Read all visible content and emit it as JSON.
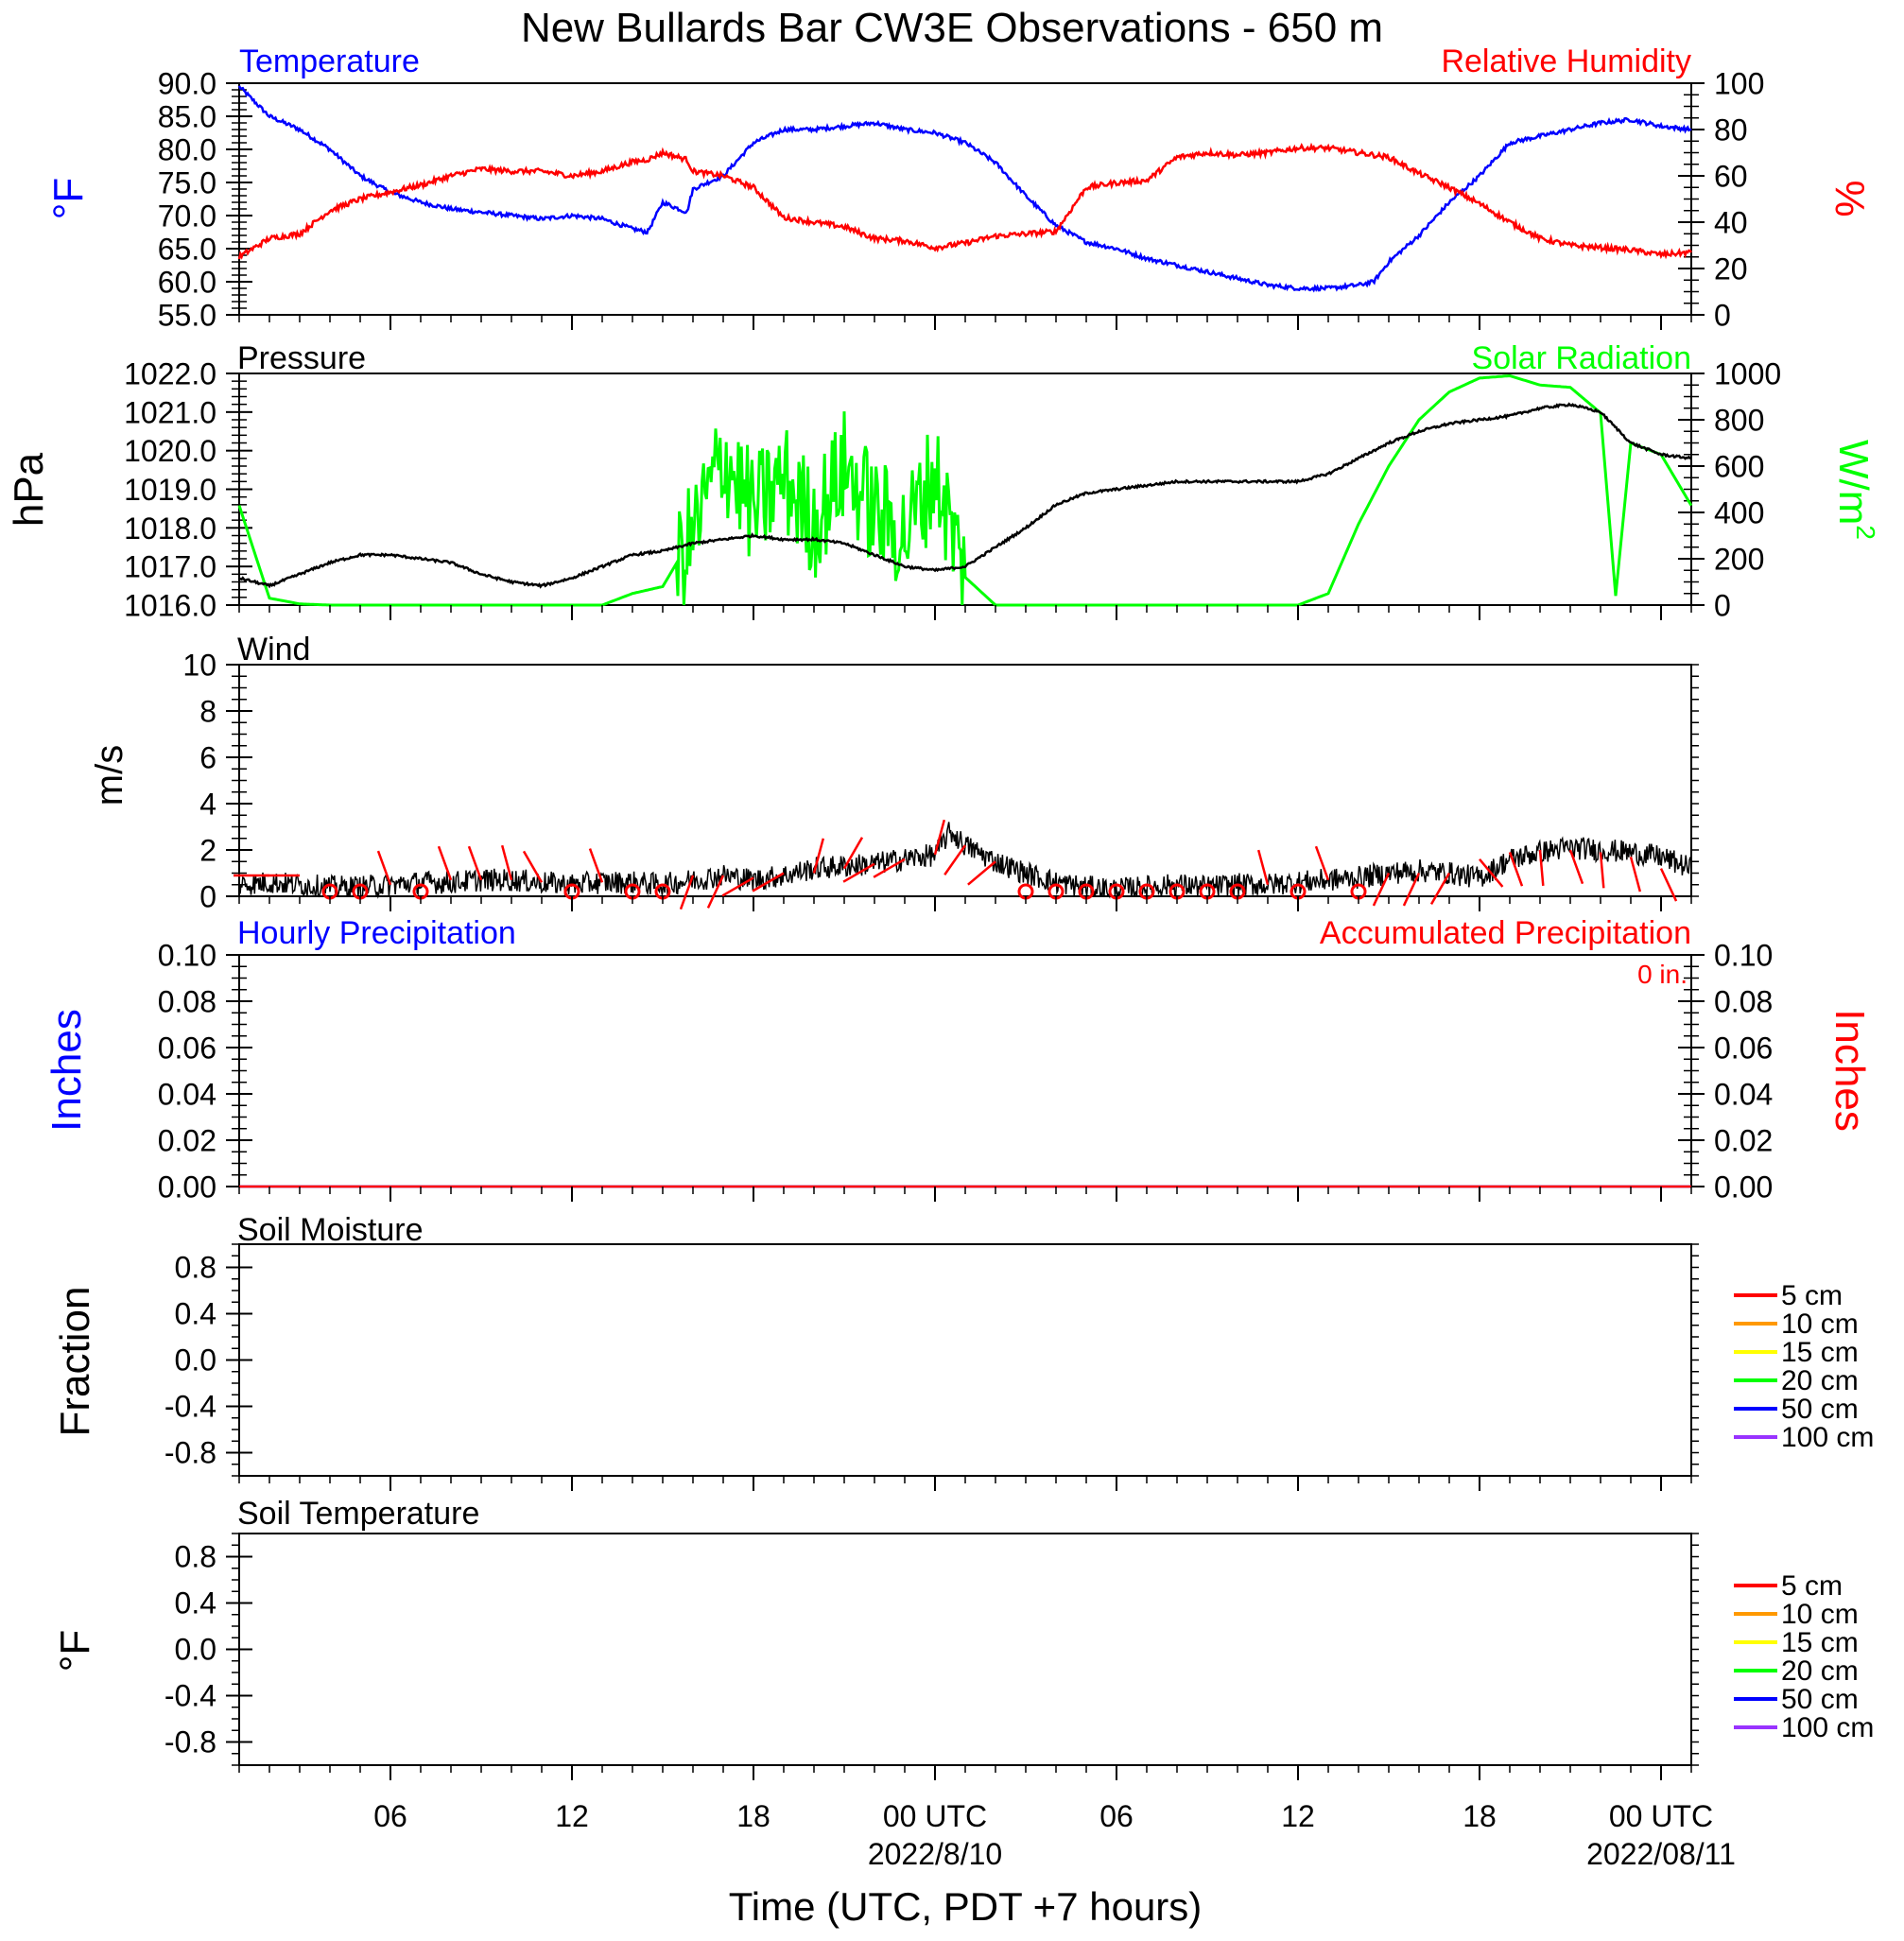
{
  "title": "New Bullards Bar CW3E Observations - 650 m",
  "xaxis": {
    "title": "Time (UTC, PDT +7 hours)",
    "ticks": [
      {
        "hour": 6,
        "label": "06",
        "sub": ""
      },
      {
        "hour": 12,
        "label": "12",
        "sub": ""
      },
      {
        "hour": 18,
        "label": "18",
        "sub": ""
      },
      {
        "hour": 24,
        "label": "00 UTC",
        "sub": "2022/8/10"
      },
      {
        "hour": 30,
        "label": "06",
        "sub": ""
      },
      {
        "hour": 36,
        "label": "12",
        "sub": ""
      },
      {
        "hour": 42,
        "label": "18",
        "sub": ""
      },
      {
        "hour": 48,
        "label": "00 UTC",
        "sub": "2022/08/11"
      }
    ],
    "range_hours": [
      1,
      49
    ]
  },
  "colors": {
    "temperature": "#0000ff",
    "humidity": "#ff0000",
    "pressure": "#000000",
    "solar": "#00ff00",
    "wind_speed": "#000000",
    "wind_barb": "#ff0000",
    "hourly_precip": "#0000ff",
    "accum_precip": "#ff0000"
  },
  "panels": {
    "temp_rh": {
      "left_title": "Temperature",
      "right_title": "Relative Humidity",
      "left_unit": "°F",
      "right_unit": "%",
      "left_ticks": [
        "90.0",
        "85.0",
        "80.0",
        "75.0",
        "70.0",
        "65.0",
        "60.0",
        "55.0"
      ],
      "right_ticks": [
        "100",
        "80",
        "60",
        "40",
        "20",
        "0"
      ]
    },
    "pressure_solar": {
      "left_title": "Pressure",
      "right_title": "Solar Radiation",
      "left_unit": "hPa",
      "right_unit": "W/m",
      "right_unit_sup": "2",
      "left_ticks": [
        "1022.0",
        "1021.0",
        "1020.0",
        "1019.0",
        "1018.0",
        "1017.0",
        "1016.0"
      ],
      "right_ticks": [
        "1000",
        "800",
        "600",
        "400",
        "200",
        "0"
      ]
    },
    "wind": {
      "left_title": "Wind",
      "left_unit": "m/s",
      "left_ticks": [
        "10",
        "8",
        "6",
        "4",
        "2",
        "0"
      ]
    },
    "precip": {
      "left_title": "Hourly Precipitation",
      "right_title": "Accumulated Precipitation",
      "accum_label": "0 in.",
      "left_unit": "Inches",
      "right_unit": "Inches",
      "left_ticks": [
        "0.10",
        "0.08",
        "0.06",
        "0.04",
        "0.02",
        "0.00"
      ],
      "right_ticks": [
        "0.10",
        "0.08",
        "0.06",
        "0.04",
        "0.02",
        "0.00"
      ]
    },
    "soil_moisture": {
      "left_title": "Soil Moisture",
      "left_unit": "Fraction",
      "left_ticks": [
        "0.8",
        "0.4",
        "0.0",
        "-0.4",
        "-0.8"
      ],
      "legend": [
        "5 cm",
        "10 cm",
        "15 cm",
        "20 cm",
        "50 cm",
        "100 cm"
      ]
    },
    "soil_temp": {
      "left_title": "Soil Temperature",
      "left_unit": "°F",
      "left_ticks": [
        "0.8",
        "0.4",
        "0.0",
        "-0.4",
        "-0.8"
      ],
      "legend": [
        "5 cm",
        "10 cm",
        "15 cm",
        "20 cm",
        "50 cm",
        "100 cm"
      ]
    }
  },
  "legend_colors": [
    "#ff0000",
    "#ff9900",
    "#ffff00",
    "#00ff00",
    "#0000ff",
    "#9933ff"
  ],
  "chart_data": [
    {
      "type": "line",
      "title": "Temperature / Relative Humidity",
      "x_hours": [
        1,
        2,
        3,
        4,
        5,
        6,
        7,
        8,
        9,
        10,
        11,
        12,
        13,
        14,
        14.5,
        15,
        15.8,
        16,
        17,
        18,
        19,
        20,
        21,
        22,
        23,
        24,
        25,
        26,
        27,
        28,
        29,
        30,
        31,
        32,
        33,
        34,
        35,
        36,
        37,
        38,
        38.5,
        39,
        40,
        41,
        42,
        43,
        44,
        45,
        46,
        47,
        48,
        49
      ],
      "series": [
        {
          "name": "Temperature",
          "unit": "°F",
          "axis": "left",
          "ylim": [
            55,
            90
          ],
          "values": [
            89.5,
            85,
            83,
            80,
            76,
            73.5,
            72,
            71,
            70.5,
            70,
            69.5,
            70,
            69.5,
            68,
            67.5,
            72,
            70.5,
            74,
            76,
            81,
            83,
            83,
            83.5,
            84,
            83,
            82.5,
            81,
            78,
            73,
            68.5,
            66,
            65,
            63.5,
            62.5,
            61.5,
            60.5,
            59.5,
            59,
            59,
            59.5,
            60,
            63,
            67,
            72,
            76,
            81,
            82,
            83,
            84,
            84.5,
            83.5,
            83
          ]
        },
        {
          "name": "Relative Humidity",
          "unit": "%",
          "axis": "right",
          "ylim": [
            0,
            100
          ],
          "values": [
            25,
            33,
            35,
            45,
            50,
            53,
            56,
            60,
            63,
            62,
            62,
            60,
            62,
            66,
            67,
            70,
            67,
            62,
            60,
            55,
            42,
            40,
            38,
            33,
            32,
            29,
            31,
            34,
            35,
            36,
            55,
            57,
            58,
            68,
            70,
            69,
            70,
            72,
            72,
            70,
            69,
            68,
            61,
            55,
            48,
            40,
            33,
            30,
            29,
            28,
            26,
            27
          ]
        }
      ]
    },
    {
      "type": "line",
      "title": "Pressure / Solar Radiation",
      "x_hours": [
        1,
        2,
        3,
        4,
        5,
        6,
        7,
        8,
        9,
        10,
        11,
        12,
        13,
        14,
        15,
        16,
        17,
        18,
        19,
        20,
        21,
        22,
        23,
        24,
        25,
        26,
        27,
        28,
        29,
        30,
        31,
        32,
        33,
        34,
        35,
        36,
        37,
        38,
        39,
        40,
        41,
        42,
        43,
        44,
        45,
        46,
        46.5,
        47,
        48,
        49
      ],
      "series": [
        {
          "name": "Pressure",
          "unit": "hPa",
          "axis": "left",
          "ylim": [
            1016,
            1022
          ],
          "values": [
            1016.7,
            1016.5,
            1016.8,
            1017.1,
            1017.3,
            1017.3,
            1017.2,
            1017.1,
            1016.8,
            1016.6,
            1016.5,
            1016.7,
            1017.0,
            1017.3,
            1017.4,
            1017.6,
            1017.7,
            1017.8,
            1017.7,
            1017.7,
            1017.6,
            1017.3,
            1017.0,
            1016.9,
            1017.0,
            1017.5,
            1018.0,
            1018.6,
            1018.9,
            1019.0,
            1019.1,
            1019.2,
            1019.2,
            1019.2,
            1019.2,
            1019.2,
            1019.4,
            1019.8,
            1020.2,
            1020.5,
            1020.7,
            1020.8,
            1020.9,
            1021.1,
            1021.2,
            1021.0,
            1020.6,
            1020.2,
            1019.9,
            1019.8
          ]
        },
        {
          "name": "Solar Radiation",
          "unit": "W/m2",
          "axis": "right",
          "ylim": [
            0,
            1000
          ],
          "values": [
            430,
            30,
            5,
            0,
            0,
            0,
            0,
            0,
            0,
            0,
            0,
            0,
            0,
            50,
            80,
            300,
            650,
            400,
            550,
            350,
            600,
            400,
            300,
            580,
            120,
            0,
            0,
            0,
            0,
            0,
            0,
            0,
            0,
            0,
            0,
            0,
            50,
            350,
            600,
            800,
            920,
            980,
            990,
            950,
            940,
            830,
            40,
            700,
            650,
            430
          ]
        }
      ]
    },
    {
      "type": "line",
      "title": "Wind",
      "ylim": [
        0,
        10
      ],
      "x_hours": [
        1,
        2,
        3,
        4,
        5,
        6,
        7,
        8,
        9,
        10,
        11,
        12,
        13,
        14,
        15,
        16,
        17,
        18,
        19,
        20,
        21,
        22,
        23,
        24,
        24.5,
        25,
        26,
        27,
        28,
        29,
        30,
        31,
        32,
        33,
        34,
        35,
        36,
        37,
        38,
        39,
        40,
        41,
        42,
        43,
        44,
        45,
        46,
        47,
        48,
        49
      ],
      "series": [
        {
          "name": "Wind Speed",
          "unit": "m/s",
          "values": [
            0.5,
            0.6,
            0.5,
            0.4,
            0.4,
            0.5,
            0.6,
            0.6,
            0.7,
            0.7,
            0.6,
            0.5,
            0.6,
            0.6,
            0.5,
            0.7,
            0.9,
            0.7,
            0.9,
            1.2,
            1.3,
            1.4,
            1.6,
            1.8,
            2.8,
            2.2,
            1.5,
            1.0,
            0.6,
            0.4,
            0.3,
            0.4,
            0.5,
            0.4,
            0.5,
            0.5,
            0.6,
            0.7,
            0.8,
            1.0,
            1.1,
            1.0,
            0.8,
            1.6,
            1.9,
            2.1,
            2.0,
            1.9,
            1.7,
            1.2
          ]
        }
      ]
    },
    {
      "type": "line",
      "title": "Hourly Precipitation / Accumulated Precipitation",
      "ylim": [
        0,
        0.1
      ],
      "x_hours": [
        1,
        49
      ],
      "series": [
        {
          "name": "Hourly Precipitation",
          "unit": "in",
          "values": [
            0,
            0
          ]
        },
        {
          "name": "Accumulated Precipitation",
          "unit": "in",
          "values": [
            0,
            0
          ]
        }
      ]
    },
    {
      "type": "line",
      "title": "Soil Moisture",
      "ylim": [
        -1,
        1
      ],
      "series": [
        {
          "name": "5 cm",
          "values": []
        },
        {
          "name": "10 cm",
          "values": []
        },
        {
          "name": "15 cm",
          "values": []
        },
        {
          "name": "20 cm",
          "values": []
        },
        {
          "name": "50 cm",
          "values": []
        },
        {
          "name": "100 cm",
          "values": []
        }
      ]
    },
    {
      "type": "line",
      "title": "Soil Temperature",
      "ylim": [
        -1,
        1
      ],
      "series": [
        {
          "name": "5 cm",
          "values": []
        },
        {
          "name": "10 cm",
          "values": []
        },
        {
          "name": "15 cm",
          "values": []
        },
        {
          "name": "20 cm",
          "values": []
        },
        {
          "name": "50 cm",
          "values": []
        },
        {
          "name": "100 cm",
          "values": []
        }
      ]
    }
  ],
  "wind_barbs": [
    {
      "hour": 2,
      "speed": 0.9,
      "dir_deg": 270
    },
    {
      "hour": 3,
      "speed": 0.9,
      "dir_deg": 270
    },
    {
      "hour": 4,
      "speed": 0,
      "dir_deg": 0
    },
    {
      "hour": 5,
      "speed": 0,
      "dir_deg": 0
    },
    {
      "hour": 6,
      "speed": 0.5,
      "dir_deg": 340
    },
    {
      "hour": 7,
      "speed": 0,
      "dir_deg": 0
    },
    {
      "hour": 8,
      "speed": 0.7,
      "dir_deg": 340
    },
    {
      "hour": 9,
      "speed": 0.7,
      "dir_deg": 340
    },
    {
      "hour": 10,
      "speed": 0.7,
      "dir_deg": 345
    },
    {
      "hour": 11,
      "speed": 0.6,
      "dir_deg": 330
    },
    {
      "hour": 12,
      "speed": 0,
      "dir_deg": 0
    },
    {
      "hour": 13,
      "speed": 0.6,
      "dir_deg": 340
    },
    {
      "hour": 14,
      "speed": 0,
      "dir_deg": 0
    },
    {
      "hour": 15,
      "speed": 0,
      "dir_deg": 0
    },
    {
      "hour": 16,
      "speed": 0.9,
      "dir_deg": 200
    },
    {
      "hour": 17,
      "speed": 0.9,
      "dir_deg": 205
    },
    {
      "hour": 18,
      "speed": 0.8,
      "dir_deg": 240
    },
    {
      "hour": 19,
      "speed": 1.0,
      "dir_deg": 240
    },
    {
      "hour": 20,
      "speed": 1.0,
      "dir_deg": 15
    },
    {
      "hour": 21,
      "speed": 1.2,
      "dir_deg": 30
    },
    {
      "hour": 22,
      "speed": 1.4,
      "dir_deg": 240
    },
    {
      "hour": 23,
      "speed": 1.6,
      "dir_deg": 240
    },
    {
      "hour": 24,
      "speed": 1.8,
      "dir_deg": 15
    },
    {
      "hour": 25,
      "speed": 2.2,
      "dir_deg": 215
    },
    {
      "hour": 26,
      "speed": 1.5,
      "dir_deg": 230
    },
    {
      "hour": 27,
      "speed": 0,
      "dir_deg": 0
    },
    {
      "hour": 28,
      "speed": 0,
      "dir_deg": 0
    },
    {
      "hour": 29,
      "speed": 0,
      "dir_deg": 0
    },
    {
      "hour": 30,
      "speed": 0,
      "dir_deg": 0
    },
    {
      "hour": 31,
      "speed": 0,
      "dir_deg": 0
    },
    {
      "hour": 32,
      "speed": 0,
      "dir_deg": 0
    },
    {
      "hour": 33,
      "speed": 0,
      "dir_deg": 0
    },
    {
      "hour": 34,
      "speed": 0,
      "dir_deg": 0
    },
    {
      "hour": 35,
      "speed": 0.5,
      "dir_deg": 345
    },
    {
      "hour": 36,
      "speed": 0,
      "dir_deg": 0
    },
    {
      "hour": 37,
      "speed": 0.7,
      "dir_deg": 340
    },
    {
      "hour": 38,
      "speed": 0,
      "dir_deg": 0
    },
    {
      "hour": 39,
      "speed": 1.0,
      "dir_deg": 205
    },
    {
      "hour": 40,
      "speed": 1.0,
      "dir_deg": 205
    },
    {
      "hour": 41,
      "speed": 1.0,
      "dir_deg": 210
    },
    {
      "hour": 42,
      "speed": 1.6,
      "dir_deg": 140
    },
    {
      "hour": 43,
      "speed": 1.9,
      "dir_deg": 160
    },
    {
      "hour": 44,
      "speed": 2.0,
      "dir_deg": 175
    },
    {
      "hour": 45,
      "speed": 2.0,
      "dir_deg": 160
    },
    {
      "hour": 46,
      "speed": 1.9,
      "dir_deg": 175
    },
    {
      "hour": 47,
      "speed": 1.7,
      "dir_deg": 165
    },
    {
      "hour": 48,
      "speed": 1.2,
      "dir_deg": 155
    }
  ]
}
